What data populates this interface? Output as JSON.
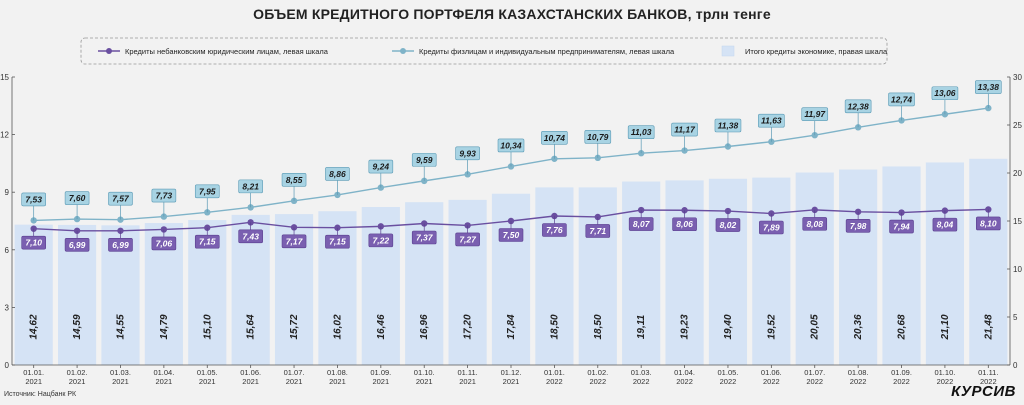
{
  "chart_data": {
    "type": "bar",
    "title": "ОБЪЕМ КРЕДИТНОГО ПОРТФЕЛЯ КАЗАХСТАНСКИХ БАНКОВ, трлн тенге",
    "categories": [
      "01.01.\n2021",
      "01.02.\n2021",
      "01.03.\n2021",
      "01.04.\n2021",
      "01.05.\n2021",
      "01.06.\n2021",
      "01.07.\n2021",
      "01.08.\n2021",
      "01.09.\n2021",
      "01.10.\n2021",
      "01.11.\n2021",
      "01.12.\n2021",
      "01.01.\n2022",
      "01.02.\n2022",
      "01.03.\n2022",
      "01.04.\n2022",
      "01.05.\n2022",
      "01.06.\n2022",
      "01.07.\n2022",
      "01.08.\n2022",
      "01.09.\n2022",
      "01.10.\n2022",
      "01.11.\n2022"
    ],
    "left_axis": {
      "ylim": [
        0,
        15
      ],
      "ticks": [
        0,
        3,
        6,
        9,
        12,
        15
      ]
    },
    "right_axis": {
      "ylim": [
        0,
        30
      ],
      "ticks": [
        0,
        5,
        10,
        15,
        20,
        25,
        30
      ]
    },
    "series": [
      {
        "name": "Кредиты небанковским юридическим лицам, левая шкала",
        "type": "line",
        "axis": "left",
        "color": "#6a4fa0",
        "values": [
          7.1,
          6.99,
          6.99,
          7.06,
          7.15,
          7.43,
          7.17,
          7.15,
          7.22,
          7.37,
          7.27,
          7.5,
          7.76,
          7.71,
          8.07,
          8.06,
          8.02,
          7.89,
          8.08,
          7.98,
          7.94,
          8.04,
          8.1
        ],
        "labels": [
          "7,10",
          "6,99",
          "6,99",
          "7,06",
          "7,15",
          "7,43",
          "7,17",
          "7,15",
          "7,22",
          "7,37",
          "7,27",
          "7,50",
          "7,76",
          "7,71",
          "8,07",
          "8,06",
          "8,02",
          "7,89",
          "8,08",
          "7,98",
          "7,94",
          "8,04",
          "8,10"
        ]
      },
      {
        "name": "Кредиты физлицам и индивидуальным предпринимателям, левая шкала",
        "type": "line",
        "axis": "left",
        "color": "#7fb3c8",
        "values": [
          7.53,
          7.6,
          7.57,
          7.73,
          7.95,
          8.21,
          8.55,
          8.86,
          9.24,
          9.59,
          9.93,
          10.34,
          10.74,
          10.79,
          11.03,
          11.17,
          11.38,
          11.63,
          11.97,
          12.38,
          12.74,
          13.06,
          13.38
        ],
        "labels": [
          "7,53",
          "7,60",
          "7,57",
          "7,73",
          "7,95",
          "8,21",
          "8,55",
          "8,86",
          "9,24",
          "9,59",
          "9,93",
          "10,34",
          "10,74",
          "10,79",
          "11,03",
          "11,17",
          "11,38",
          "11,63",
          "11,97",
          "12,38",
          "12,74",
          "13,06",
          "13,38"
        ]
      },
      {
        "name": "Итого кредиты экономике, правая шкала",
        "type": "bar",
        "axis": "right",
        "color": "#d5e3f5",
        "values": [
          14.62,
          14.59,
          14.55,
          14.79,
          15.1,
          15.64,
          15.72,
          16.02,
          16.46,
          16.96,
          17.2,
          17.84,
          18.5,
          18.5,
          19.11,
          19.23,
          19.4,
          19.52,
          20.05,
          20.36,
          20.68,
          21.1,
          21.48
        ],
        "labels": [
          "14,62",
          "14,59",
          "14,55",
          "14,79",
          "15,10",
          "15,64",
          "15,72",
          "16,02",
          "16,46",
          "16,96",
          "17,20",
          "17,84",
          "18,50",
          "18,50",
          "19,11",
          "19,23",
          "19,40",
          "19,52",
          "20,05",
          "20,36",
          "20,68",
          "21,10",
          "21,48"
        ]
      }
    ],
    "legend_position": "top",
    "grid": false
  },
  "source": "Источник: Нацбанк РК",
  "logo": "КУРСИВ"
}
